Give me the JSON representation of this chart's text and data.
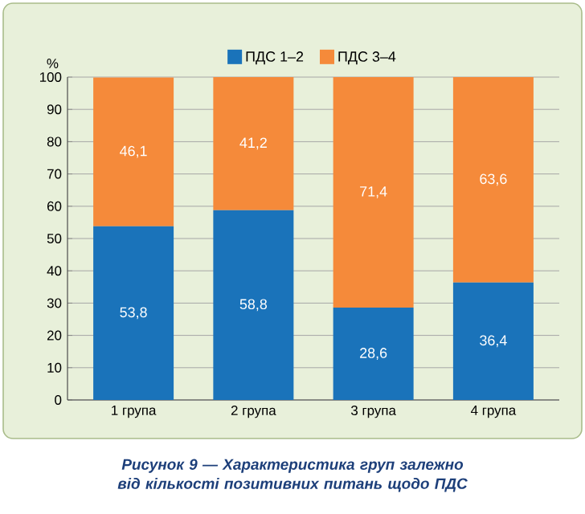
{
  "chart_data": {
    "type": "bar",
    "stacked": true,
    "categories": [
      "1 група",
      "2 група",
      "3 група",
      "4 група"
    ],
    "series": [
      {
        "name": "ПДС 1–2",
        "color": "#1a73ba",
        "values": [
          53.8,
          58.8,
          28.6,
          36.4
        ],
        "value_labels": [
          "53,8",
          "58,8",
          "28,6",
          "36,4"
        ]
      },
      {
        "name": "ПДС 3–4",
        "color": "#f58a3a",
        "values": [
          46.1,
          41.2,
          71.4,
          63.6
        ],
        "value_labels": [
          "46,1",
          "41,2",
          "71,4",
          "63,6"
        ]
      }
    ],
    "ylabel": "%",
    "ylim": [
      0,
      100
    ],
    "yticks": [
      0,
      10,
      20,
      30,
      40,
      50,
      60,
      70,
      80,
      90,
      100
    ],
    "grid": "y",
    "legend": "top",
    "annotations": [
      "Рисунок 9 — Характеристика груп залежно від кількості позитивних питань щодо ПДС"
    ]
  }
}
